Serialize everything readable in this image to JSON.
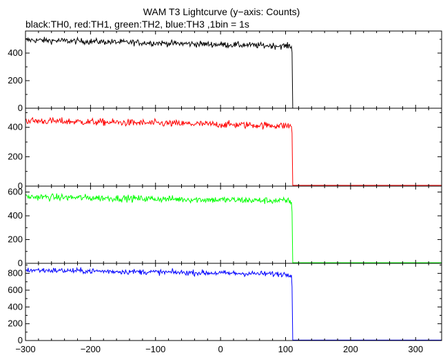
{
  "title": "WAM T3 Lightcurve (y−axis: Counts)",
  "subtitle": "black:TH0, red:TH1, green:TH2, blue:TH3 ,1bin = 1s",
  "chart_data": {
    "type": "line",
    "title": "WAM T3 Lightcurve (y−axis: Counts)",
    "subtitle": "black:TH0, red:TH1, green:TH2, blue:TH3 ,1bin = 1s",
    "xlim": [
      -300,
      340
    ],
    "x_ticks": [
      -300,
      -200,
      -100,
      0,
      100,
      200,
      300
    ],
    "x_tick_labels": [
      "−300",
      "−200",
      "−100",
      "0",
      "100",
      "200",
      "300"
    ],
    "cutoff_x": 110,
    "panels": [
      {
        "series": "TH0",
        "color": "#000000",
        "ylim": [
          0,
          560
        ],
        "y_ticks": [
          0,
          200,
          400
        ],
        "y_tick_labels": [
          "0",
          "200",
          "400"
        ],
        "level_start": 495,
        "level_end": 450,
        "noise": 22,
        "drop_tail_to": 405,
        "after": 0
      },
      {
        "series": "TH1",
        "color": "#ff0000",
        "ylim": [
          0,
          530
        ],
        "y_ticks": [
          0,
          200,
          400
        ],
        "y_tick_labels": [
          "0",
          "200",
          "400"
        ],
        "level_start": 445,
        "level_end": 410,
        "noise": 24,
        "drop_tail_to": 360,
        "after": 5
      },
      {
        "series": "TH2",
        "color": "#00ff00",
        "ylim": [
          0,
          650
        ],
        "y_ticks": [
          0,
          200,
          400,
          600
        ],
        "y_tick_labels": [
          "0",
          "200",
          "400",
          "600"
        ],
        "level_start": 560,
        "level_end": 525,
        "noise": 28,
        "drop_tail_to": 430,
        "after": 5
      },
      {
        "series": "TH3",
        "color": "#0000ff",
        "ylim": [
          0,
          920
        ],
        "y_ticks": [
          0,
          200,
          400,
          600,
          800
        ],
        "y_tick_labels": [
          "0",
          "200",
          "400",
          "600",
          "800"
        ],
        "level_start": 840,
        "level_end": 790,
        "noise": 32,
        "drop_tail_to": 640,
        "after": 5
      }
    ]
  }
}
